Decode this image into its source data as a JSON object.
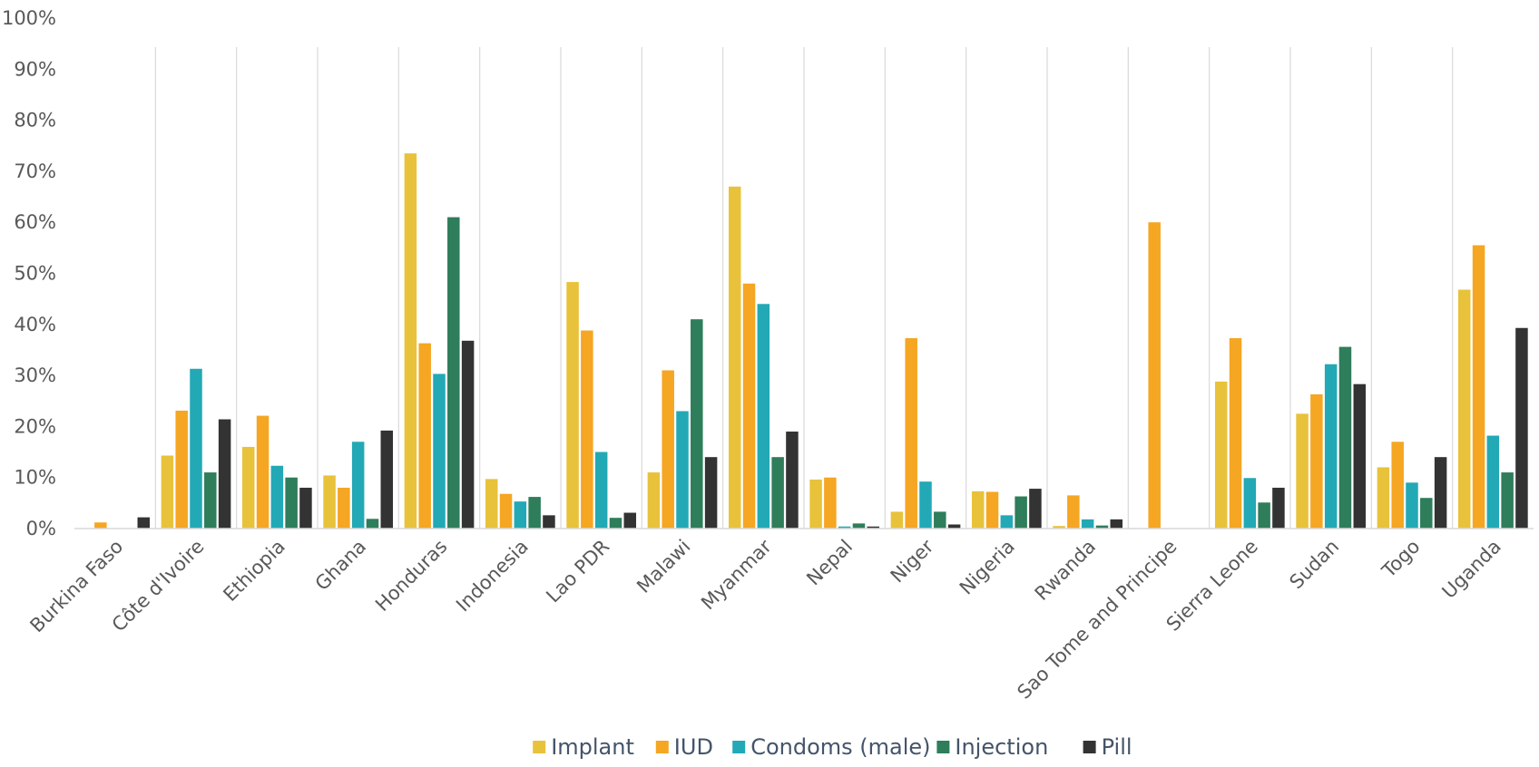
{
  "chart_data": {
    "type": "bar",
    "title": "",
    "xlabel": "",
    "ylabel": "",
    "ylim": [
      0,
      100
    ],
    "yticks": [
      "0%",
      "10%",
      "20%",
      "30%",
      "40%",
      "50%",
      "60%",
      "70%",
      "80%",
      "90%",
      "100%"
    ],
    "grid": "vertical separators between categories",
    "legend_position": "bottom",
    "categories": [
      "Burkina Faso",
      "Côte d'Ivoire",
      "Ethiopia",
      "Ghana",
      "Honduras",
      "Indonesia",
      "Lao PDR",
      "Malawi",
      "Myanmar",
      "Nepal",
      "Niger",
      "Nigeria",
      "Rwanda",
      "Sao Tome and Principe",
      "Sierra Leone",
      "Sudan",
      "Togo",
      "Uganda"
    ],
    "series": [
      {
        "name": "Implant",
        "color": "#e8c23b",
        "values": [
          0,
          14.3,
          16,
          10.4,
          73.5,
          9.7,
          48.3,
          11,
          67,
          9.6,
          3.3,
          7.3,
          0.5,
          0,
          28.8,
          22.5,
          12,
          46.8
        ]
      },
      {
        "name": "IUD",
        "color": "#f5a623",
        "values": [
          1.2,
          23.1,
          22.1,
          8,
          36.3,
          6.8,
          38.8,
          31,
          48,
          10,
          37.3,
          7.2,
          6.5,
          60,
          37.3,
          26.3,
          17,
          55.5
        ]
      },
      {
        "name": "Condoms (male)",
        "color": "#22a9b5",
        "values": [
          0,
          31.3,
          12.3,
          17,
          30.3,
          5.3,
          15,
          23,
          44,
          0.4,
          9.2,
          2.6,
          1.8,
          0,
          9.9,
          32.2,
          9,
          18.2
        ]
      },
      {
        "name": "Injection",
        "color": "#2e7d5b",
        "values": [
          0,
          11,
          10,
          1.9,
          61,
          6.2,
          2.1,
          41,
          14,
          1,
          3.3,
          6.3,
          0.6,
          0,
          5.1,
          35.6,
          6,
          11
        ]
      },
      {
        "name": "Pill",
        "color": "#333333",
        "values": [
          2.2,
          21.4,
          8,
          19.2,
          36.8,
          2.6,
          3.1,
          14,
          19,
          0.4,
          0.8,
          7.8,
          1.8,
          0,
          8,
          28.3,
          14,
          39.3
        ]
      }
    ]
  }
}
